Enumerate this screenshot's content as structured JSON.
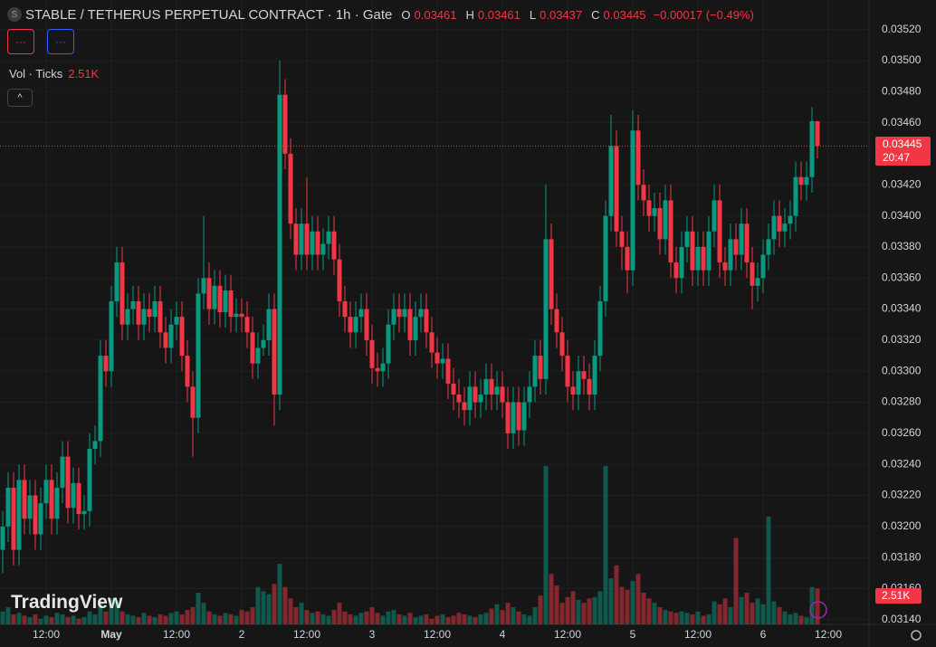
{
  "chart_data": {
    "type": "candlestick",
    "title": "STABLE / TETHERUS PERPETUAL CONTRACT · 1h · Gate",
    "symbol_icon": "S",
    "ohlc_keys": [
      "O",
      "H",
      "L",
      "C"
    ],
    "change": "−0.00017 (−0.49%)",
    "countdown": "20:47",
    "indicator_buttons": [
      "···",
      "···"
    ],
    "watermark": "TradingView",
    "up_color": "#089981",
    "down_color": "#f23645",
    "ylim": [
      0.03137,
      0.03539
    ],
    "yticks": [
      {
        "value": 0.0352,
        "label": "0.03520"
      },
      {
        "value": 0.035,
        "label": "0.03500"
      },
      {
        "value": 0.0348,
        "label": "0.03480"
      },
      {
        "value": 0.0346,
        "label": "0.03460"
      },
      {
        "value": 0.0342,
        "label": "0.03420"
      },
      {
        "value": 0.034,
        "label": "0.03400"
      },
      {
        "value": 0.0338,
        "label": "0.03380"
      },
      {
        "value": 0.0336,
        "label": "0.03360"
      },
      {
        "value": 0.0334,
        "label": "0.03340"
      },
      {
        "value": 0.0332,
        "label": "0.03320"
      },
      {
        "value": 0.033,
        "label": "0.03300"
      },
      {
        "value": 0.0328,
        "label": "0.03280"
      },
      {
        "value": 0.0326,
        "label": "0.03260"
      },
      {
        "value": 0.0324,
        "label": "0.03240"
      },
      {
        "value": 0.0322,
        "label": "0.03220"
      },
      {
        "value": 0.032,
        "label": "0.03200"
      },
      {
        "value": 0.0318,
        "label": "0.03180"
      },
      {
        "value": 0.0316,
        "label": "0.03160"
      },
      {
        "value": 0.0314,
        "label": "0.03140"
      }
    ],
    "xticks": [
      {
        "value": 8,
        "label": "12:00"
      },
      {
        "value": 20,
        "label": "May"
      },
      {
        "value": 32,
        "label": "12:00"
      },
      {
        "value": 44,
        "label": "2"
      },
      {
        "value": 56,
        "label": "12:00"
      },
      {
        "value": 68,
        "label": "3"
      },
      {
        "value": 80,
        "label": "12:00"
      },
      {
        "value": 92,
        "label": "4"
      },
      {
        "value": 104,
        "label": "12:00"
      },
      {
        "value": 116,
        "label": "5"
      },
      {
        "value": 128,
        "label": "12:00"
      },
      {
        "value": 140,
        "label": "6"
      },
      {
        "value": 152,
        "label": "12:00"
      }
    ],
    "candles": [
      [
        0.03185,
        0.0321,
        0.0317,
        0.032
      ],
      [
        0.032,
        0.03235,
        0.0319,
        0.03225
      ],
      [
        0.03225,
        0.03235,
        0.03175,
        0.03185
      ],
      [
        0.03185,
        0.0324,
        0.03175,
        0.0323
      ],
      [
        0.0323,
        0.0324,
        0.03195,
        0.03205
      ],
      [
        0.03205,
        0.0323,
        0.03195,
        0.0322
      ],
      [
        0.0322,
        0.0323,
        0.03185,
        0.03195
      ],
      [
        0.03195,
        0.03225,
        0.03185,
        0.03215
      ],
      [
        0.03215,
        0.0324,
        0.03205,
        0.0323
      ],
      [
        0.0323,
        0.0324,
        0.03195,
        0.03205
      ],
      [
        0.03205,
        0.03235,
        0.03195,
        0.03225
      ],
      [
        0.03225,
        0.03255,
        0.03215,
        0.03245
      ],
      [
        0.03245,
        0.03255,
        0.03202,
        0.03212
      ],
      [
        0.03212,
        0.03238,
        0.03202,
        0.03228
      ],
      [
        0.03228,
        0.03238,
        0.03198,
        0.03208
      ],
      [
        0.03208,
        0.0322,
        0.03198,
        0.0321
      ],
      [
        0.0321,
        0.0326,
        0.032,
        0.0325
      ],
      [
        0.0325,
        0.03265,
        0.0324,
        0.03255
      ],
      [
        0.03255,
        0.0332,
        0.03245,
        0.0331
      ],
      [
        0.0331,
        0.0332,
        0.0329,
        0.033
      ],
      [
        0.033,
        0.03355,
        0.0329,
        0.03345
      ],
      [
        0.03345,
        0.0338,
        0.03335,
        0.0337
      ],
      [
        0.0337,
        0.0338,
        0.0332,
        0.0333
      ],
      [
        0.0333,
        0.0335,
        0.0332,
        0.0334
      ],
      [
        0.0334,
        0.03355,
        0.0333,
        0.03345
      ],
      [
        0.03345,
        0.03355,
        0.0332,
        0.0333
      ],
      [
        0.0333,
        0.0335,
        0.0332,
        0.0334
      ],
      [
        0.0334,
        0.0335,
        0.03325,
        0.03335
      ],
      [
        0.03335,
        0.03355,
        0.03325,
        0.03345
      ],
      [
        0.03345,
        0.03355,
        0.03315,
        0.03325
      ],
      [
        0.03325,
        0.03335,
        0.03305,
        0.03315
      ],
      [
        0.03315,
        0.0334,
        0.03305,
        0.0333
      ],
      [
        0.0333,
        0.03345,
        0.0332,
        0.03335
      ],
      [
        0.03335,
        0.03345,
        0.033,
        0.0331
      ],
      [
        0.0331,
        0.0332,
        0.0328,
        0.0329
      ],
      [
        0.0329,
        0.033,
        0.03245,
        0.0327
      ],
      [
        0.0327,
        0.0336,
        0.0326,
        0.0335
      ],
      [
        0.0335,
        0.034,
        0.0334,
        0.0336
      ],
      [
        0.0336,
        0.0337,
        0.0333,
        0.0334
      ],
      [
        0.0334,
        0.03365,
        0.0333,
        0.03355
      ],
      [
        0.03355,
        0.03365,
        0.03328,
        0.03338
      ],
      [
        0.03338,
        0.03362,
        0.03328,
        0.03352
      ],
      [
        0.03352,
        0.03362,
        0.03325,
        0.03335
      ],
      [
        0.03335,
        0.03347,
        0.03325,
        0.03337
      ],
      [
        0.03337,
        0.03347,
        0.03325,
        0.03335
      ],
      [
        0.03335,
        0.03345,
        0.03315,
        0.03325
      ],
      [
        0.03325,
        0.03335,
        0.03295,
        0.03305
      ],
      [
        0.03305,
        0.03325,
        0.03295,
        0.03315
      ],
      [
        0.03315,
        0.0333,
        0.0331,
        0.0332
      ],
      [
        0.0332,
        0.0335,
        0.0331,
        0.0334
      ],
      [
        0.0334,
        0.0335,
        0.03265,
        0.03285
      ],
      [
        0.03285,
        0.035,
        0.03275,
        0.03478
      ],
      [
        0.03478,
        0.03488,
        0.0343,
        0.0344
      ],
      [
        0.0344,
        0.0345,
        0.03385,
        0.03395
      ],
      [
        0.03395,
        0.03405,
        0.03365,
        0.03375
      ],
      [
        0.03375,
        0.03405,
        0.03365,
        0.03395
      ],
      [
        0.03395,
        0.03425,
        0.03365,
        0.03375
      ],
      [
        0.03375,
        0.034,
        0.03365,
        0.0339
      ],
      [
        0.0339,
        0.034,
        0.03365,
        0.03375
      ],
      [
        0.03375,
        0.03392,
        0.03365,
        0.03382
      ],
      [
        0.03382,
        0.034,
        0.03372,
        0.0339
      ],
      [
        0.0339,
        0.034,
        0.03362,
        0.03372
      ],
      [
        0.03372,
        0.03382,
        0.03335,
        0.03345
      ],
      [
        0.03345,
        0.03355,
        0.03325,
        0.03335
      ],
      [
        0.03335,
        0.03345,
        0.03315,
        0.03325
      ],
      [
        0.03325,
        0.03345,
        0.03315,
        0.03335
      ],
      [
        0.03335,
        0.0335,
        0.03325,
        0.0334
      ],
      [
        0.0334,
        0.0335,
        0.0331,
        0.0332
      ],
      [
        0.0332,
        0.0333,
        0.03292,
        0.03302
      ],
      [
        0.03302,
        0.03312,
        0.0329,
        0.033
      ],
      [
        0.033,
        0.03315,
        0.0329,
        0.03305
      ],
      [
        0.03305,
        0.0334,
        0.03295,
        0.0333
      ],
      [
        0.0333,
        0.0335,
        0.0332,
        0.0334
      ],
      [
        0.0334,
        0.0335,
        0.03325,
        0.03335
      ],
      [
        0.03335,
        0.0335,
        0.03325,
        0.0334
      ],
      [
        0.0334,
        0.0335,
        0.0331,
        0.0332
      ],
      [
        0.0332,
        0.03345,
        0.0331,
        0.03335
      ],
      [
        0.03335,
        0.0335,
        0.03325,
        0.0334
      ],
      [
        0.0334,
        0.0335,
        0.03315,
        0.03325
      ],
      [
        0.03325,
        0.03335,
        0.03302,
        0.03312
      ],
      [
        0.03312,
        0.03322,
        0.03295,
        0.03305
      ],
      [
        0.03305,
        0.03318,
        0.03295,
        0.03308
      ],
      [
        0.03308,
        0.03318,
        0.03282,
        0.03292
      ],
      [
        0.03292,
        0.03302,
        0.03275,
        0.03285
      ],
      [
        0.03285,
        0.03295,
        0.0327,
        0.0328
      ],
      [
        0.0328,
        0.0329,
        0.03265,
        0.03275
      ],
      [
        0.03275,
        0.033,
        0.03265,
        0.0329
      ],
      [
        0.0329,
        0.033,
        0.0327,
        0.0328
      ],
      [
        0.0328,
        0.03295,
        0.0327,
        0.03285
      ],
      [
        0.03285,
        0.03305,
        0.03275,
        0.03295
      ],
      [
        0.03295,
        0.03305,
        0.03275,
        0.03285
      ],
      [
        0.03285,
        0.033,
        0.03275,
        0.0329
      ],
      [
        0.0329,
        0.033,
        0.0327,
        0.0328
      ],
      [
        0.0328,
        0.0329,
        0.0325,
        0.0326
      ],
      [
        0.0326,
        0.0329,
        0.0325,
        0.0328
      ],
      [
        0.0328,
        0.0329,
        0.03252,
        0.03262
      ],
      [
        0.03262,
        0.0329,
        0.03252,
        0.0328
      ],
      [
        0.0328,
        0.033,
        0.0327,
        0.0329
      ],
      [
        0.0329,
        0.0332,
        0.0328,
        0.0331
      ],
      [
        0.0331,
        0.0332,
        0.03285,
        0.03295
      ],
      [
        0.03295,
        0.0342,
        0.03285,
        0.03385
      ],
      [
        0.03385,
        0.03395,
        0.0333,
        0.0334
      ],
      [
        0.0334,
        0.0335,
        0.03315,
        0.03325
      ],
      [
        0.03325,
        0.03335,
        0.033,
        0.0331
      ],
      [
        0.0331,
        0.0332,
        0.0328,
        0.0329
      ],
      [
        0.0329,
        0.033,
        0.03275,
        0.03285
      ],
      [
        0.03285,
        0.0331,
        0.03275,
        0.033
      ],
      [
        0.033,
        0.0331,
        0.03285,
        0.03295
      ],
      [
        0.03295,
        0.03305,
        0.03275,
        0.03285
      ],
      [
        0.03285,
        0.0332,
        0.03275,
        0.0331
      ],
      [
        0.0331,
        0.03355,
        0.033,
        0.03345
      ],
      [
        0.03345,
        0.0341,
        0.03335,
        0.034
      ],
      [
        0.034,
        0.03465,
        0.0339,
        0.03445
      ],
      [
        0.03445,
        0.03455,
        0.0338,
        0.0339
      ],
      [
        0.0339,
        0.034,
        0.03365,
        0.0338
      ],
      [
        0.0338,
        0.0339,
        0.0335,
        0.03365
      ],
      [
        0.03365,
        0.03468,
        0.03355,
        0.03455
      ],
      [
        0.03455,
        0.03465,
        0.0341,
        0.0342
      ],
      [
        0.0342,
        0.0343,
        0.034,
        0.0341
      ],
      [
        0.0341,
        0.0342,
        0.0339,
        0.034
      ],
      [
        0.034,
        0.03415,
        0.0339,
        0.03405
      ],
      [
        0.03405,
        0.03415,
        0.03375,
        0.03385
      ],
      [
        0.03385,
        0.0342,
        0.03375,
        0.0341
      ],
      [
        0.0341,
        0.0342,
        0.0336,
        0.0337
      ],
      [
        0.0337,
        0.0338,
        0.0335,
        0.0336
      ],
      [
        0.0336,
        0.0339,
        0.0335,
        0.0338
      ],
      [
        0.0338,
        0.034,
        0.0337,
        0.0339
      ],
      [
        0.0339,
        0.034,
        0.03355,
        0.03365
      ],
      [
        0.03365,
        0.0339,
        0.03355,
        0.0338
      ],
      [
        0.0338,
        0.0339,
        0.03355,
        0.03365
      ],
      [
        0.03365,
        0.034,
        0.03355,
        0.0339
      ],
      [
        0.0339,
        0.0342,
        0.0338,
        0.0341
      ],
      [
        0.0341,
        0.0342,
        0.0336,
        0.0337
      ],
      [
        0.0337,
        0.0338,
        0.03355,
        0.03365
      ],
      [
        0.03365,
        0.03395,
        0.03355,
        0.03385
      ],
      [
        0.03385,
        0.03395,
        0.03365,
        0.03375
      ],
      [
        0.03375,
        0.03405,
        0.03365,
        0.03395
      ],
      [
        0.03395,
        0.03405,
        0.0336,
        0.0337
      ],
      [
        0.0337,
        0.0338,
        0.0334,
        0.03355
      ],
      [
        0.03355,
        0.0337,
        0.03345,
        0.0336
      ],
      [
        0.0336,
        0.03385,
        0.0335,
        0.03375
      ],
      [
        0.03375,
        0.03395,
        0.03365,
        0.03385
      ],
      [
        0.03385,
        0.0341,
        0.03375,
        0.034
      ],
      [
        0.034,
        0.0341,
        0.0338,
        0.0339
      ],
      [
        0.0339,
        0.03405,
        0.0338,
        0.03395
      ],
      [
        0.03395,
        0.0341,
        0.03385,
        0.034
      ],
      [
        0.034,
        0.03435,
        0.0339,
        0.03425
      ],
      [
        0.03425,
        0.03435,
        0.0341,
        0.0342
      ],
      [
        0.0342,
        0.03435,
        0.0341,
        0.03425
      ],
      [
        0.03425,
        0.0347,
        0.03415,
        0.03461
      ],
      [
        0.03461,
        0.03461,
        0.03437,
        0.03445
      ]
    ],
    "volume": {
      "name": "Vol · Ticks",
      "values": [
        900,
        1200,
        700,
        800,
        600,
        500,
        700,
        400,
        600,
        500,
        800,
        700,
        500,
        600,
        400,
        500,
        900,
        700,
        1500,
        900,
        1800,
        1600,
        900,
        700,
        600,
        500,
        800,
        600,
        500,
        700,
        600,
        800,
        900,
        700,
        1000,
        1200,
        2200,
        1500,
        900,
        700,
        600,
        800,
        700,
        600,
        1000,
        900,
        1200,
        2600,
        2300,
        2100,
        2800,
        4200,
        2600,
        1800,
        1200,
        1500,
        1000,
        800,
        900,
        700,
        600,
        1000,
        1500,
        900,
        700,
        600,
        800,
        900,
        1200,
        800,
        600,
        900,
        1000,
        700,
        600,
        800,
        500,
        600,
        700,
        400,
        600,
        700,
        500,
        600,
        800,
        700,
        600,
        500,
        700,
        800,
        1100,
        1400,
        1000,
        1500,
        1200,
        900,
        700,
        600,
        1200,
        2000,
        11000,
        3500,
        2700,
        1500,
        1900,
        2300,
        1700,
        1500,
        1800,
        1900,
        2300,
        11000,
        3200,
        4100,
        2600,
        2400,
        3000,
        3500,
        2200,
        1800,
        1500,
        1200,
        1000,
        900,
        800,
        900,
        800,
        700,
        900,
        600,
        700,
        1600,
        1400,
        1800,
        1200,
        6000,
        1900,
        2200,
        1500,
        1800,
        1400,
        7500,
        1600,
        1200,
        900,
        700,
        800,
        600,
        500,
        2600,
        2510
      ],
      "value_labels": [
        null,
        null,
        null,
        null,
        null,
        null,
        null,
        null,
        null,
        null,
        null,
        null,
        null,
        null,
        null,
        null,
        null,
        null,
        null,
        null,
        null,
        null,
        null,
        null,
        null,
        null,
        null,
        null,
        null,
        null,
        null,
        null,
        null,
        null,
        null,
        null,
        null,
        null,
        null,
        null,
        null,
        null,
        null,
        null,
        null,
        null,
        null,
        null,
        null,
        null,
        null,
        null,
        null,
        null,
        null,
        null,
        null,
        null,
        null,
        null,
        null,
        null,
        null,
        null,
        null,
        null,
        null,
        null,
        null,
        null,
        null,
        null,
        null,
        null,
        null,
        null,
        null,
        null,
        null,
        null,
        null,
        null,
        null,
        null,
        null,
        null,
        null,
        null,
        null,
        null,
        null,
        null,
        null,
        null,
        null,
        null,
        null,
        null,
        null,
        null,
        null,
        null,
        null,
        null,
        null,
        null,
        null,
        null,
        null,
        null,
        null,
        null,
        null,
        null,
        null,
        null,
        null,
        null,
        null,
        null,
        null,
        null,
        null,
        null,
        null,
        null,
        null,
        null,
        null,
        null,
        null,
        null,
        null,
        null,
        null,
        null,
        null,
        null,
        null,
        null,
        null,
        null,
        null,
        null,
        null,
        null,
        null,
        null,
        null,
        null,
        "2.51K"
      ]
    }
  }
}
